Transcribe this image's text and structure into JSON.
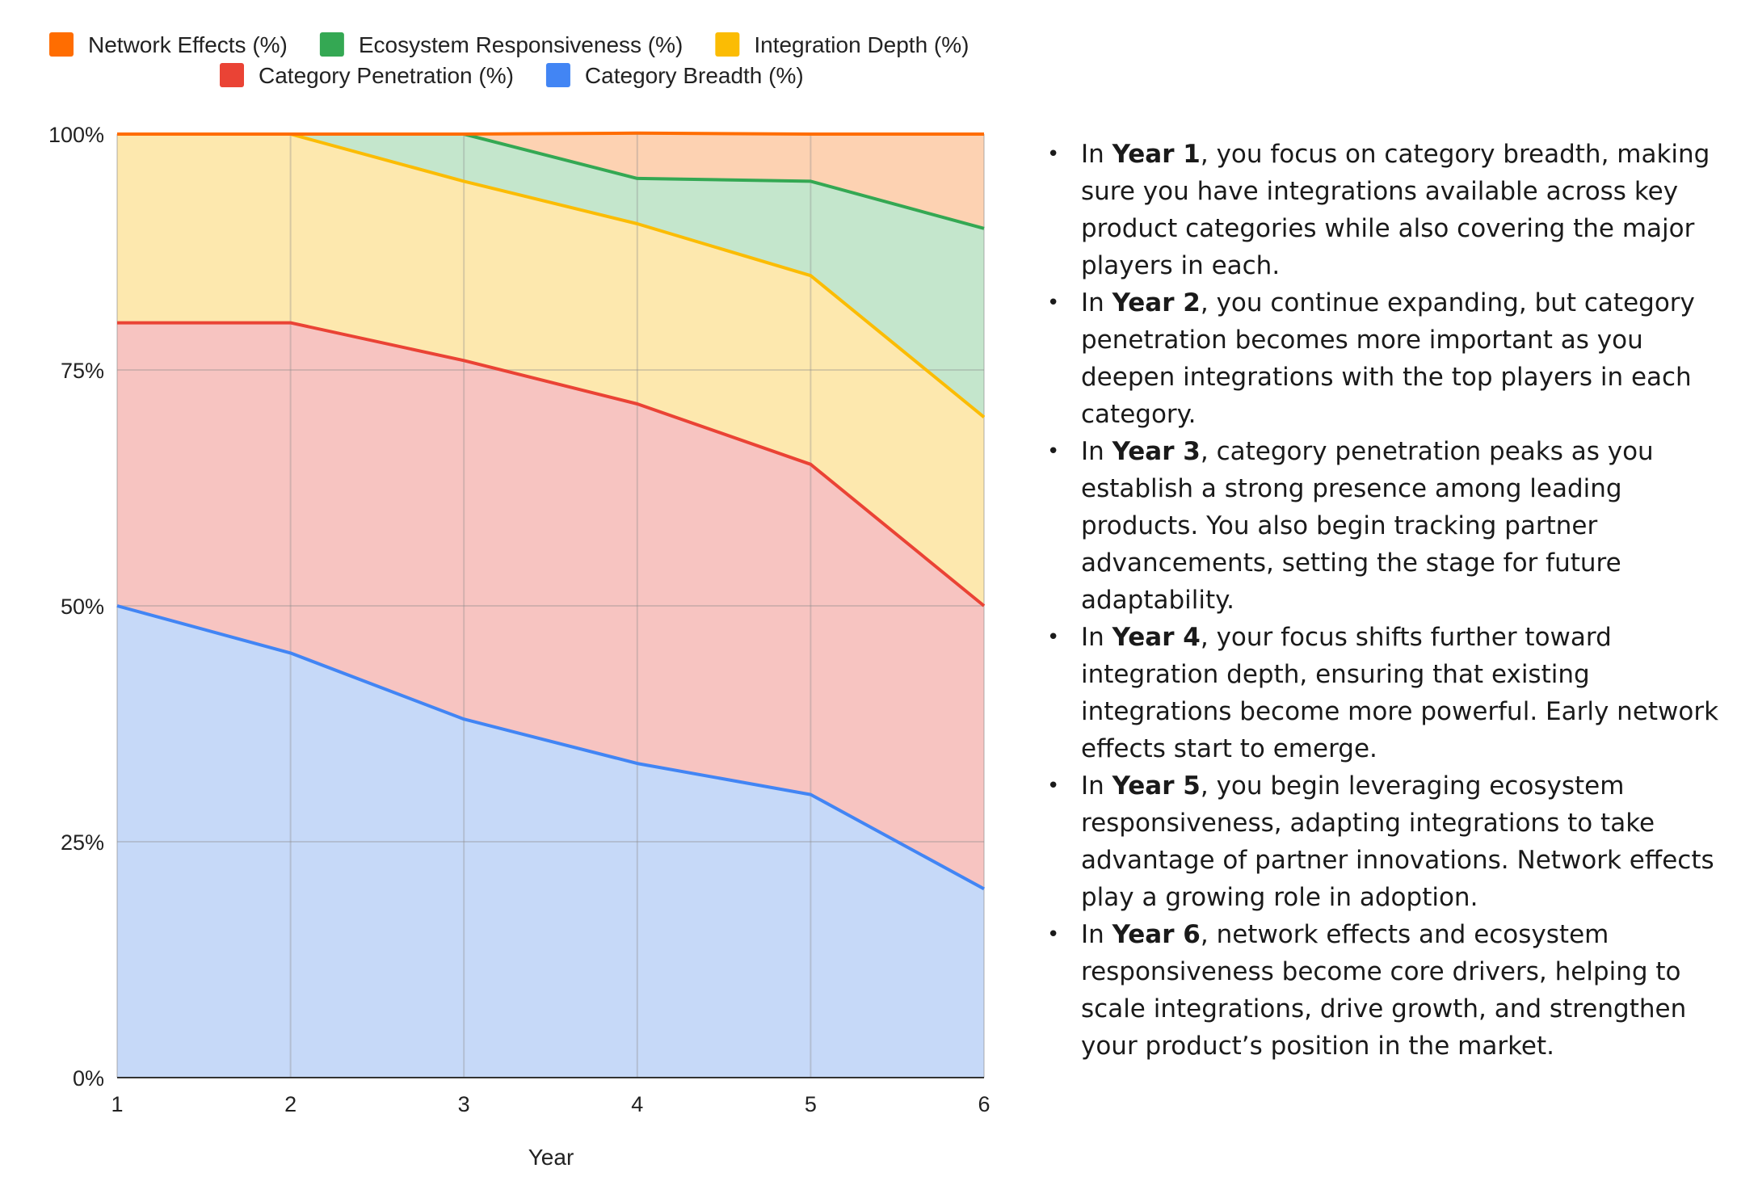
{
  "chart_data": {
    "type": "area",
    "stacked": "percent",
    "x": [
      1,
      2,
      3,
      4,
      5,
      6
    ],
    "xlabel": "Year",
    "ylabel": "",
    "ylim": [
      0,
      100
    ],
    "yticks": [
      "0%",
      "25%",
      "50%",
      "75%",
      "100%"
    ],
    "xticks": [
      "1",
      "2",
      "3",
      "4",
      "5",
      "6"
    ],
    "grid": true,
    "legend_position": "top",
    "series": [
      {
        "name": "Category Breadth (%)",
        "color": "#4285f4",
        "fill": "#c6d9f8",
        "values": [
          50,
          45,
          38,
          33.3,
          30,
          20
        ]
      },
      {
        "name": "Category Penetration (%)",
        "color": "#ea4335",
        "fill": "#f7c4c1",
        "values": [
          30,
          35,
          38,
          38.1,
          35,
          30
        ]
      },
      {
        "name": "Integration Depth (%)",
        "color": "#fbbc04",
        "fill": "#fde8ae",
        "values": [
          20,
          20,
          19,
          19.1,
          20,
          20
        ]
      },
      {
        "name": "Ecosystem Responsiveness (%)",
        "color": "#34a853",
        "fill": "#c4e6cc",
        "values": [
          0,
          0,
          5,
          4.8,
          10,
          20
        ]
      },
      {
        "name": "Network Effects (%)",
        "color": "#ff6d01",
        "fill": "#fdd2b2",
        "values": [
          0,
          0,
          0,
          4.8,
          5,
          10
        ]
      }
    ],
    "legend_rows": [
      [
        "Network Effects (%)",
        "Ecosystem Responsiveness (%)",
        "Integration Depth (%)"
      ],
      [
        "Category Penetration (%)",
        "Category Breadth (%)"
      ]
    ]
  },
  "notes": [
    {
      "prefix": "In ",
      "bold": "Year 1",
      "text": ", you focus on category breadth, making sure you have integrations available across key product categories while also covering the major players in each."
    },
    {
      "prefix": "In ",
      "bold": "Year 2",
      "text": ", you continue expanding, but category penetration becomes more important as you deepen integrations with the top players in each category."
    },
    {
      "prefix": "In ",
      "bold": "Year 3",
      "text": ", category penetration peaks as you establish a strong presence among leading products. You also begin tracking partner advancements, setting the stage for future adaptability."
    },
    {
      "prefix": "In ",
      "bold": "Year 4",
      "text": ", your focus shifts further toward integration depth, ensuring that existing integrations become more powerful. Early network effects start to emerge."
    },
    {
      "prefix": "In ",
      "bold": "Year 5",
      "text": ", you begin leveraging ecosystem responsiveness, adapting integrations to take advantage of partner innovations. Network effects play a growing role in adoption."
    },
    {
      "prefix": "In ",
      "bold": "Year 6",
      "text": ", network effects and ecosystem responsiveness become core drivers, helping to scale integrations, drive growth, and strengthen your product’s position in the market."
    }
  ],
  "bullet_char": "•"
}
